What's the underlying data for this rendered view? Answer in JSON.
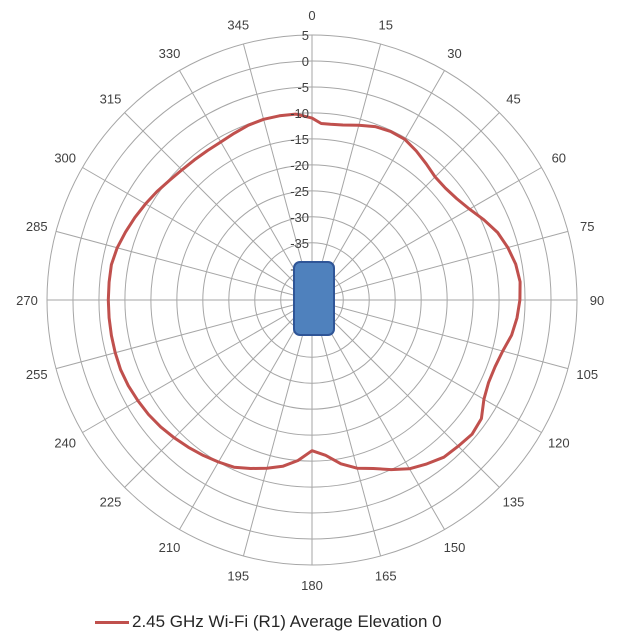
{
  "chart_data": {
    "type": "polar-line",
    "title": "",
    "angular_ticks": [
      "0",
      "15",
      "30",
      "45",
      "60",
      "75",
      "90",
      "105",
      "120",
      "135",
      "150",
      "165",
      "180",
      "195",
      "210",
      "225",
      "240",
      "255",
      "270",
      "285",
      "300",
      "315",
      "330",
      "345"
    ],
    "radial_ticks": [
      "5",
      "0",
      "-5",
      "-10",
      "-15",
      "-20",
      "-25",
      "-30",
      "-35",
      "-40"
    ],
    "rlim": [
      -40,
      5
    ],
    "grid": true,
    "legend_position": "bottom",
    "series": [
      {
        "name": "2.45 GHz Wi-Fi (R1) Average Elevation 0",
        "color": "#c0504d",
        "angles": [
          0,
          3,
          6,
          10,
          15,
          20,
          25,
          30,
          35,
          40,
          45,
          50,
          55,
          60,
          65,
          70,
          75,
          80,
          85,
          90,
          95,
          100,
          105,
          110,
          115,
          120,
          125,
          130,
          135,
          140,
          145,
          150,
          155,
          160,
          165,
          170,
          175,
          180,
          185,
          190,
          195,
          200,
          205,
          210,
          215,
          220,
          225,
          230,
          235,
          240,
          245,
          250,
          255,
          260,
          265,
          270,
          275,
          280,
          285,
          290,
          295,
          300,
          305,
          310,
          315,
          320,
          325,
          330,
          335,
          340,
          345,
          350,
          355,
          360
        ],
        "values": [
          -11.0,
          -12.0,
          -12.0,
          -11.8,
          -11.2,
          -10.5,
          -10.2,
          -10.3,
          -11.0,
          -11.8,
          -12.5,
          -12.5,
          -12.0,
          -11.0,
          -9.5,
          -8.0,
          -7.0,
          -6.2,
          -5.8,
          -6.0,
          -6.4,
          -7.0,
          -8.0,
          -8.5,
          -8.5,
          -7.8,
          -6.2,
          -5.8,
          -6.2,
          -6.5,
          -7.5,
          -8.5,
          -10.0,
          -11.5,
          -12.5,
          -14.0,
          -16.0,
          -17.0,
          -15.0,
          -13.5,
          -12.5,
          -11.5,
          -10.5,
          -10.0,
          -9.5,
          -9.0,
          -8.5,
          -8.0,
          -7.6,
          -7.3,
          -7.0,
          -6.8,
          -6.8,
          -6.8,
          -6.8,
          -6.8,
          -6.8,
          -6.8,
          -7.2,
          -7.8,
          -8.4,
          -9.0,
          -9.6,
          -10.2,
          -10.6,
          -10.8,
          -10.9,
          -10.9,
          -10.6,
          -10.2,
          -10.0,
          -10.0,
          -10.1,
          -11.0
        ]
      }
    ]
  },
  "device_marker": {
    "label": "device",
    "color": "#4f81bd"
  }
}
